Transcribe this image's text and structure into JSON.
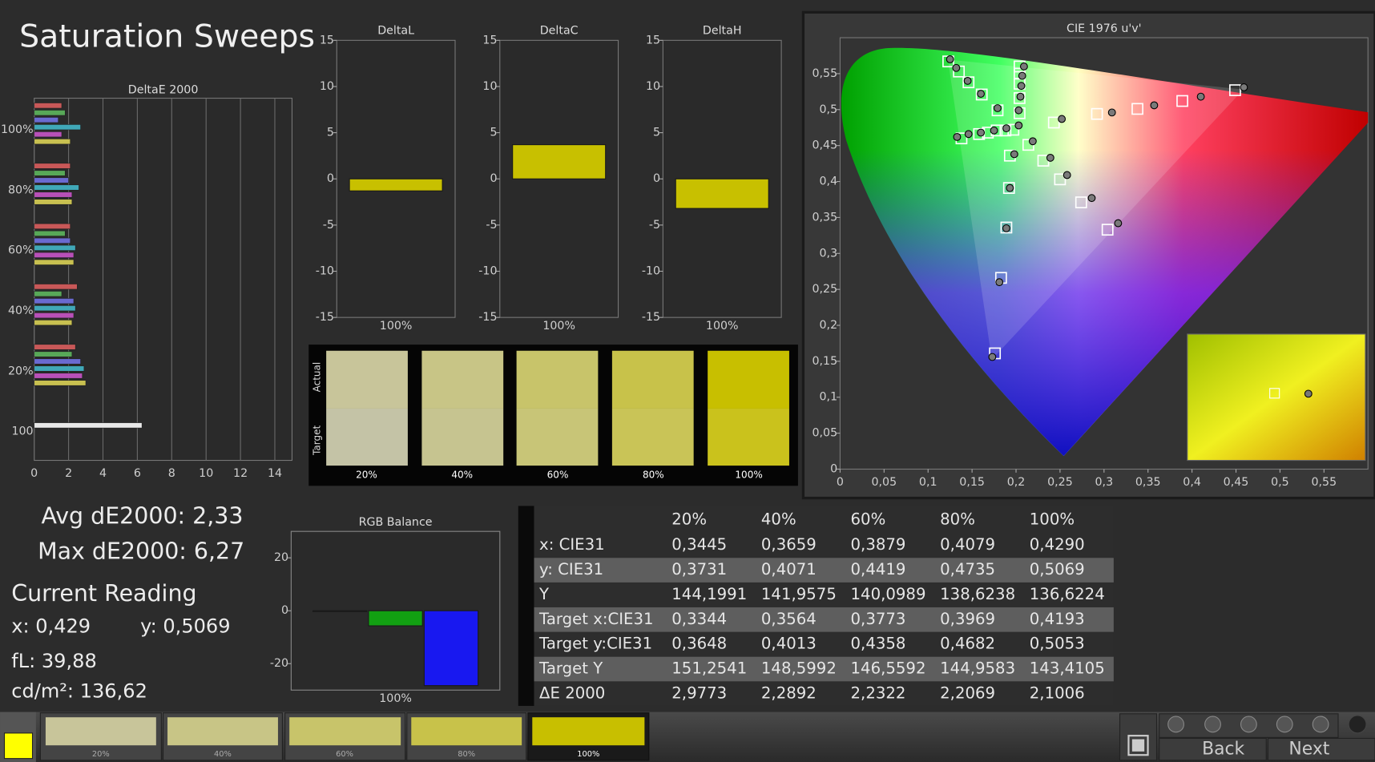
{
  "header": {
    "title": "Saturation Sweeps"
  },
  "stats": {
    "avg": "Avg dE2000: 2,33",
    "max": "Max dE2000: 6,27"
  },
  "reading": {
    "title": "Current Reading",
    "x": "x: 0,429",
    "y": "y: 0,5069",
    "fl": "fL: 39,88",
    "cd": "cd/m²: 136,62"
  },
  "swatches": {
    "actual": "Actual",
    "target": "Target",
    "labels": [
      "20%",
      "40%",
      "60%",
      "80%",
      "100%"
    ]
  },
  "table": {
    "header": [
      "20%",
      "40%",
      "60%",
      "80%",
      "100%"
    ],
    "rows": [
      [
        "x: CIE31",
        "0,3445",
        "0,3659",
        "0,3879",
        "0,4079",
        "0,4290"
      ],
      [
        "y: CIE31",
        "0,3731",
        "0,4071",
        "0,4419",
        "0,4735",
        "0,5069"
      ],
      [
        "Y",
        "144,1991",
        "141,9575",
        "140,0989",
        "138,6238",
        "136,6224"
      ],
      [
        "Target x:CIE31",
        "0,3344",
        "0,3564",
        "0,3773",
        "0,3969",
        "0,4193"
      ],
      [
        "Target y:CIE31",
        "0,3648",
        "0,4013",
        "0,4358",
        "0,4682",
        "0,5053"
      ],
      [
        "Target Y",
        "151,2541",
        "148,5992",
        "146,5592",
        "144,9583",
        "143,4105"
      ],
      [
        "ΔE 2000",
        "2,9773",
        "2,2892",
        "2,2322",
        "2,2069",
        "2,1006"
      ]
    ]
  },
  "footer": {
    "swatches": [
      "20%",
      "40%",
      "60%",
      "80%",
      "100%"
    ],
    "back": "Back",
    "next": "Next"
  },
  "chart_data": [
    {
      "type": "hbar",
      "title": "DeltaE 2000",
      "categories": [
        "100%",
        "80%",
        "60%",
        "40%",
        "20%",
        "100"
      ],
      "series": [
        {
          "color": "#c85858",
          "values": [
            1.6,
            2.1,
            2.1,
            2.5,
            2.4,
            null
          ]
        },
        {
          "color": "#58a858",
          "values": [
            1.8,
            1.8,
            1.8,
            1.6,
            2.2,
            null
          ]
        },
        {
          "color": "#6a6ad0",
          "values": [
            1.4,
            2.0,
            2.1,
            2.3,
            2.7,
            null
          ]
        },
        {
          "color": "#40a8b8",
          "values": [
            2.7,
            2.6,
            2.4,
            2.4,
            2.9,
            null
          ]
        },
        {
          "color": "#b850b8",
          "values": [
            1.6,
            2.2,
            2.3,
            2.3,
            2.8,
            null
          ]
        },
        {
          "color": "#c8c050",
          "values": [
            2.1,
            2.2,
            2.3,
            2.2,
            3.0,
            null
          ]
        },
        {
          "color": "#e8e8e8",
          "values": [
            null,
            null,
            null,
            null,
            null,
            6.27
          ]
        }
      ],
      "xlim": [
        0,
        15
      ],
      "xticks": [
        0,
        2,
        4,
        6,
        8,
        10,
        12,
        14
      ],
      "grid": true
    },
    {
      "type": "bar",
      "title": "DeltaL",
      "categories": [
        "100%"
      ],
      "values": [
        -1.3
      ],
      "color": "#c8c000",
      "ylim": [
        -15,
        15
      ],
      "yticks": [
        -15,
        -10,
        -5,
        0,
        5,
        10,
        15
      ]
    },
    {
      "type": "bar",
      "title": "DeltaC",
      "categories": [
        "100%"
      ],
      "values": [
        3.7
      ],
      "color": "#c8c000",
      "ylim": [
        -15,
        15
      ],
      "yticks": [
        -15,
        -10,
        -5,
        0,
        5,
        10,
        15
      ]
    },
    {
      "type": "bar",
      "title": "DeltaH",
      "categories": [
        "100%"
      ],
      "values": [
        -3.2
      ],
      "color": "#c8c000",
      "ylim": [
        -15,
        15
      ],
      "yticks": [
        -15,
        -10,
        -5,
        0,
        5,
        10,
        15
      ]
    },
    {
      "type": "scatter",
      "title": "CIE 1976 u'v'",
      "xlim": [
        0,
        0.6
      ],
      "ylim": [
        0,
        0.6
      ],
      "xticks": [
        0,
        {
          "value": 0.05,
          "label": "0,05"
        },
        {
          "value": 0.1,
          "label": "0,1"
        },
        {
          "value": 0.15,
          "label": "0,15"
        },
        {
          "value": 0.2,
          "label": "0,2"
        },
        {
          "value": 0.25,
          "label": "0,25"
        },
        {
          "value": 0.3,
          "label": "0,3"
        },
        {
          "value": 0.35,
          "label": "0,35"
        },
        {
          "value": 0.4,
          "label": "0,4"
        },
        {
          "value": 0.45,
          "label": "0,45"
        },
        {
          "value": 0.5,
          "label": "0,5"
        },
        {
          "value": 0.55,
          "label": "0,55"
        }
      ],
      "yticks": [
        0,
        {
          "value": 0.05,
          "label": "0,05"
        },
        {
          "value": 0.1,
          "label": "0,1"
        },
        {
          "value": 0.15,
          "label": "0,15"
        },
        {
          "value": 0.2,
          "label": "0,2"
        },
        {
          "value": 0.25,
          "label": "0,25"
        },
        {
          "value": 0.3,
          "label": "0,3"
        },
        {
          "value": 0.35,
          "label": "0,35"
        },
        {
          "value": 0.4,
          "label": "0,4"
        },
        {
          "value": 0.45,
          "label": "0,45"
        },
        {
          "value": 0.5,
          "label": "0,5"
        },
        {
          "value": 0.55,
          "label": "0,55"
        }
      ],
      "series": [
        {
          "marker": "square",
          "color": "#ffffff",
          "x": [
            0.197,
            0.243,
            0.292,
            0.338,
            0.389,
            0.449,
            0.179,
            0.161,
            0.146,
            0.135,
            0.123,
            0.193,
            0.192,
            0.189,
            0.183,
            0.176,
            0.188,
            0.178,
            0.168,
            0.158,
            0.138,
            0.214,
            0.231,
            0.25,
            0.274,
            0.304,
            0.204,
            0.204,
            0.204,
            0.204,
            0.204
          ],
          "y": [
            0.472,
            0.482,
            0.494,
            0.501,
            0.512,
            0.527,
            0.499,
            0.521,
            0.538,
            0.553,
            0.567,
            0.436,
            0.391,
            0.336,
            0.266,
            0.161,
            0.471,
            0.471,
            0.468,
            0.466,
            0.46,
            0.451,
            0.429,
            0.403,
            0.371,
            0.333,
            0.495,
            0.516,
            0.536,
            0.55,
            0.56
          ]
        },
        {
          "marker": "circle",
          "color": "#7a7a7a",
          "x": [
            0.203,
            0.252,
            0.309,
            0.357,
            0.41,
            0.459,
            0.179,
            0.16,
            0.145,
            0.132,
            0.125,
            0.198,
            0.193,
            0.189,
            0.181,
            0.173,
            0.189,
            0.175,
            0.16,
            0.146,
            0.133,
            0.219,
            0.239,
            0.258,
            0.286,
            0.316,
            0.203,
            0.205,
            0.206,
            0.207,
            0.209
          ],
          "y": [
            0.478,
            0.487,
            0.496,
            0.506,
            0.518,
            0.531,
            0.502,
            0.522,
            0.54,
            0.558,
            0.57,
            0.438,
            0.391,
            0.335,
            0.26,
            0.156,
            0.474,
            0.471,
            0.468,
            0.466,
            0.462,
            0.456,
            0.433,
            0.409,
            0.377,
            0.342,
            0.499,
            0.518,
            0.533,
            0.547,
            0.56
          ]
        }
      ]
    },
    {
      "type": "bar",
      "title": "RGB Balance",
      "categories": [
        "100%"
      ],
      "series": [
        {
          "color": "#d01010",
          "values": [
            -0.3
          ]
        },
        {
          "color": "#12a012",
          "values": [
            -5.7
          ]
        },
        {
          "color": "#1818f0",
          "values": [
            -28.3
          ]
        }
      ],
      "ylim": [
        -30,
        30
      ],
      "yticks": [
        -20,
        0,
        20
      ]
    }
  ]
}
